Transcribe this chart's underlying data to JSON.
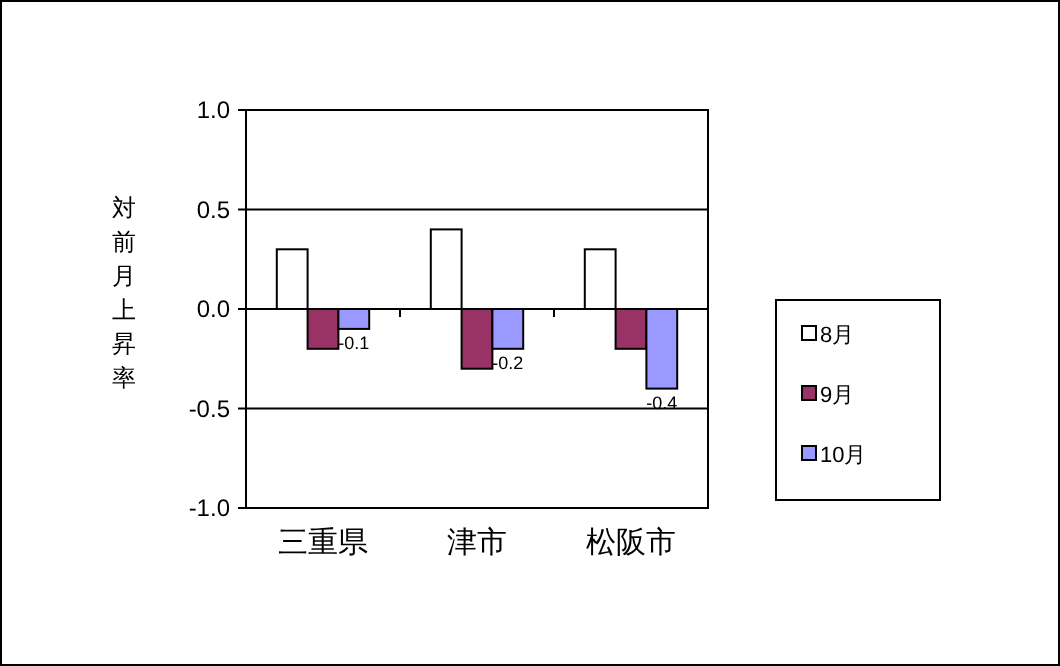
{
  "chart_data": {
    "type": "bar",
    "ylabel": "対前月上昇率",
    "categories": [
      "三重県",
      "津市",
      "松阪市"
    ],
    "series": [
      {
        "name": "8月",
        "color": "#ffffff",
        "values": [
          0.3,
          0.4,
          0.3
        ]
      },
      {
        "name": "9月",
        "color": "#993366",
        "values": [
          -0.2,
          -0.3,
          -0.2
        ]
      },
      {
        "name": "10月",
        "color": "#9999ff",
        "values": [
          -0.1,
          -0.2,
          -0.4
        ],
        "value_labels": [
          "-0.1",
          "-0.2",
          "-0.4"
        ]
      }
    ],
    "ylim": [
      -1,
      1
    ],
    "yticks": [
      {
        "value": -1,
        "label": "-1.0"
      },
      {
        "value": -0.5,
        "label": "-0.5"
      },
      {
        "value": 0,
        "label": "0.0"
      },
      {
        "value": 0.5,
        "label": "0.5"
      },
      {
        "value": 1,
        "label": "1.0"
      }
    ],
    "grid": "y",
    "legend": "right"
  }
}
